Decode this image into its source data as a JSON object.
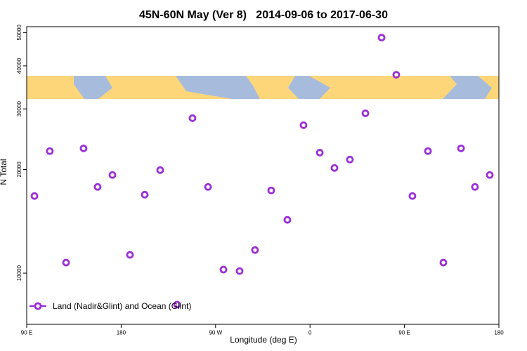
{
  "chart_data": {
    "type": "scatter",
    "title": "45N-60N May (Ver 8)   2014-09-06 to 2017-06-30",
    "x_label": "Longitude (deg E)",
    "y_label": "N Total",
    "log_y": true,
    "xlim": [
      90,
      540
    ],
    "xticks": [
      {
        "value": 90,
        "label": "90 E"
      },
      180,
      {
        "value": 270,
        "label": "90 W"
      },
      {
        "value": 360,
        "label": "0"
      },
      {
        "value": 450,
        "label": "90 E"
      },
      {
        "value": 540,
        "label": "180"
      }
    ],
    "ylim": [
      7100,
      52000
    ],
    "yticks": [
      10000,
      20000,
      30000,
      40000,
      50000
    ],
    "legend": "bottom-left",
    "series": [
      {
        "name": "Land (Nadir&Glint) and Ocean (Glint)",
        "color": "#9b30d9",
        "x": [
          97.4,
          112,
          127.5,
          144.2,
          157.6,
          171.7,
          188.4,
          202.5,
          217.2,
          233.3,
          248,
          262.8,
          277.5,
          292.9,
          307.6,
          323,
          338.4,
          353.8,
          369.3,
          383.3,
          398,
          412.8,
          428.2,
          442.2,
          457.6,
          472.4,
          487.1,
          503.9,
          517.2,
          531.3
        ],
        "values": [
          16750,
          22620,
          10730,
          23040,
          17800,
          19280,
          11300,
          16900,
          19920,
          8100,
          28200,
          17800,
          10240,
          10140,
          11670,
          17390,
          14280,
          26900,
          22390,
          20210,
          21380,
          29130,
          48330,
          37700,
          16750,
          22620,
          10730,
          23040,
          17800,
          19280
        ]
      }
    ]
  }
}
